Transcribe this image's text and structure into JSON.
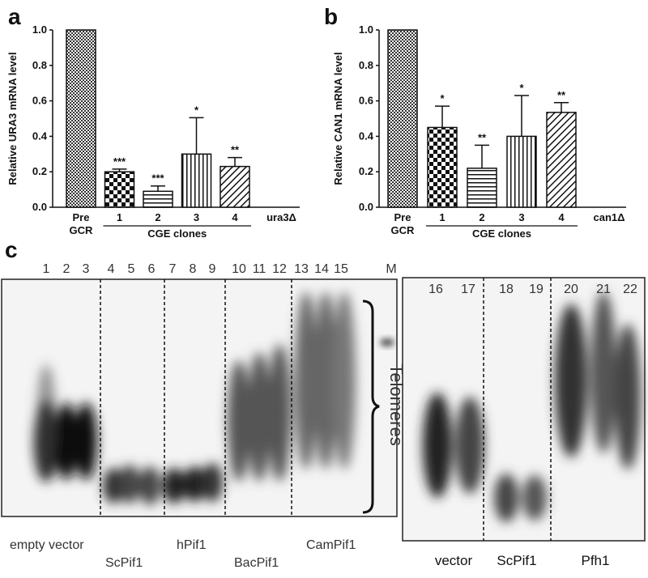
{
  "chart_data": [
    {
      "type": "bar",
      "panel": "a",
      "y_label": "Relative URA3 mRNA level",
      "categories": [
        "Pre GCR",
        "1",
        "2",
        "3",
        "4",
        "ura3Δ"
      ],
      "values": [
        1.0,
        0.2,
        0.09,
        0.3,
        0.23,
        0
      ],
      "errors": [
        null,
        0.015,
        0.03,
        0.205,
        0.05,
        null
      ],
      "significance": [
        null,
        "***",
        "***",
        "*",
        "**",
        null
      ],
      "patterns": [
        "crosshatch",
        "checker",
        "hlines",
        "vlines",
        "diag",
        null
      ],
      "group_label": "CGE clones",
      "ylim": [
        0,
        1.0
      ],
      "yticks": [
        {
          "value": 0,
          "label": "0.0"
        },
        0.2,
        0.4,
        0.6,
        0.8,
        {
          "value": 1.0,
          "label": "1.0"
        }
      ]
    },
    {
      "type": "bar",
      "panel": "b",
      "y_label": "Relative CAN1 mRNA level",
      "categories": [
        "Pre GCR",
        "1",
        "2",
        "3",
        "4",
        "can1Δ"
      ],
      "values": [
        1.0,
        0.45,
        0.22,
        0.4,
        0.535,
        0
      ],
      "errors": [
        null,
        0.12,
        0.13,
        0.23,
        0.055,
        null
      ],
      "significance": [
        null,
        "*",
        "**",
        "*",
        "**",
        null
      ],
      "patterns": [
        "crosshatch",
        "checker",
        "hlines",
        "vlines",
        "diag",
        null
      ],
      "group_label": "CGE clones",
      "ylim": [
        0,
        1.0
      ],
      "yticks": [
        {
          "value": 0,
          "label": "0.0"
        },
        0.2,
        0.4,
        0.6,
        0.8,
        {
          "value": 1.0,
          "label": "1.0"
        }
      ]
    }
  ],
  "gel": {
    "panel": "c",
    "left": {
      "lanes": [
        "1",
        "2",
        "3",
        "4",
        "5",
        "6",
        "7",
        "8",
        "9",
        "10",
        "11",
        "12",
        "13",
        "14",
        "15"
      ],
      "marker": "M",
      "bracket_label": "Telomeres",
      "groups": [
        "empty vector",
        "ScPif1",
        "hPif1",
        "BacPif1",
        "CamPif1"
      ]
    },
    "right": {
      "lanes": [
        "16",
        "17",
        "18",
        "19",
        "20",
        "21",
        "22"
      ],
      "groups": [
        "vector",
        "ScPif1",
        "Pfh1"
      ]
    }
  }
}
